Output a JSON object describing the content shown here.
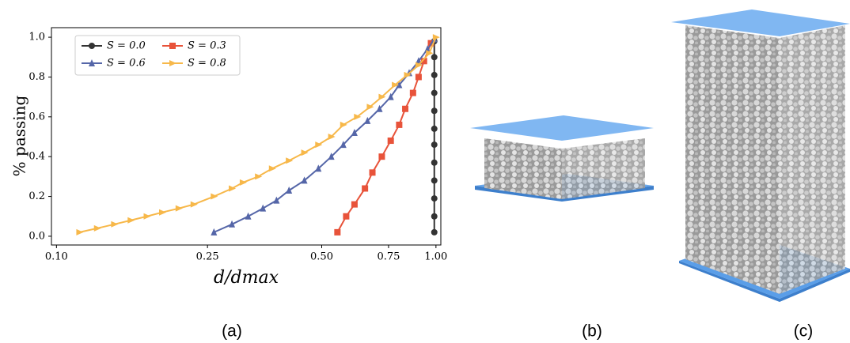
{
  "chart_data": {
    "type": "line",
    "xlabel": "d/dmax",
    "ylabel": "% passing",
    "xscale": "log",
    "xlim": [
      0.097,
      1.03
    ],
    "ylim": [
      -0.044,
      1.048
    ],
    "xticks": [
      {
        "value": 0.1,
        "label": "0.10"
      },
      {
        "value": 0.25,
        "label": "0.25"
      },
      {
        "value": 0.5,
        "label": "0.50"
      },
      {
        "value": 0.75,
        "label": "0.75"
      },
      {
        "value": 1,
        "label": "1.00"
      }
    ],
    "yticks": [
      {
        "value": 0,
        "label": "0.0"
      },
      {
        "value": 0.2,
        "label": "0.2"
      },
      {
        "value": 0.4,
        "label": "0.4"
      },
      {
        "value": 0.6,
        "label": "0.6"
      },
      {
        "value": 0.8,
        "label": "0.8"
      },
      {
        "value": 1,
        "label": "1.0"
      }
    ],
    "legend": "upper left",
    "series": [
      {
        "name": "S = 0.0",
        "color": "#333333",
        "marker": "circle",
        "x": [
          0.99,
          0.99,
          0.99,
          0.99,
          0.99,
          0.99,
          0.99,
          0.99,
          0.99,
          0.99,
          0.99,
          0.99
        ],
        "values": [
          0.02,
          0.1,
          0.19,
          0.28,
          0.37,
          0.46,
          0.54,
          0.63,
          0.72,
          0.81,
          0.9,
          0.98
        ]
      },
      {
        "name": "S = 0.3",
        "color": "#e8533a",
        "marker": "square",
        "x": [
          0.55,
          0.58,
          0.61,
          0.65,
          0.68,
          0.72,
          0.76,
          0.8,
          0.83,
          0.87,
          0.9,
          0.93,
          0.97
        ],
        "values": [
          0.02,
          0.1,
          0.16,
          0.24,
          0.32,
          0.4,
          0.48,
          0.56,
          0.64,
          0.72,
          0.8,
          0.88,
          0.97
        ]
      },
      {
        "name": "S = 0.6",
        "color": "#5566a8",
        "marker": "triangle-up",
        "x": [
          0.26,
          0.29,
          0.32,
          0.35,
          0.38,
          0.41,
          0.45,
          0.49,
          0.53,
          0.57,
          0.61,
          0.66,
          0.71,
          0.76,
          0.8,
          0.85,
          0.9,
          0.95,
          0.99
        ],
        "values": [
          0.02,
          0.06,
          0.1,
          0.14,
          0.18,
          0.23,
          0.28,
          0.34,
          0.4,
          0.46,
          0.52,
          0.58,
          0.64,
          0.7,
          0.76,
          0.82,
          0.88,
          0.94,
          0.99
        ]
      },
      {
        "name": "S = 0.8",
        "color": "#f7b84a",
        "marker": "triangle-right",
        "x": [
          0.115,
          0.128,
          0.142,
          0.157,
          0.173,
          0.19,
          0.21,
          0.23,
          0.26,
          0.29,
          0.31,
          0.34,
          0.37,
          0.41,
          0.45,
          0.49,
          0.53,
          0.57,
          0.62,
          0.67,
          0.72,
          0.78,
          0.84,
          0.9,
          0.96,
          1.0
        ],
        "values": [
          0.02,
          0.04,
          0.06,
          0.08,
          0.1,
          0.12,
          0.14,
          0.16,
          0.2,
          0.24,
          0.27,
          0.3,
          0.34,
          0.38,
          0.42,
          0.46,
          0.5,
          0.56,
          0.6,
          0.65,
          0.7,
          0.76,
          0.81,
          0.86,
          0.92,
          1.0
        ]
      }
    ]
  },
  "panel_labels": [
    "(a)",
    "(b)",
    "(c)"
  ]
}
